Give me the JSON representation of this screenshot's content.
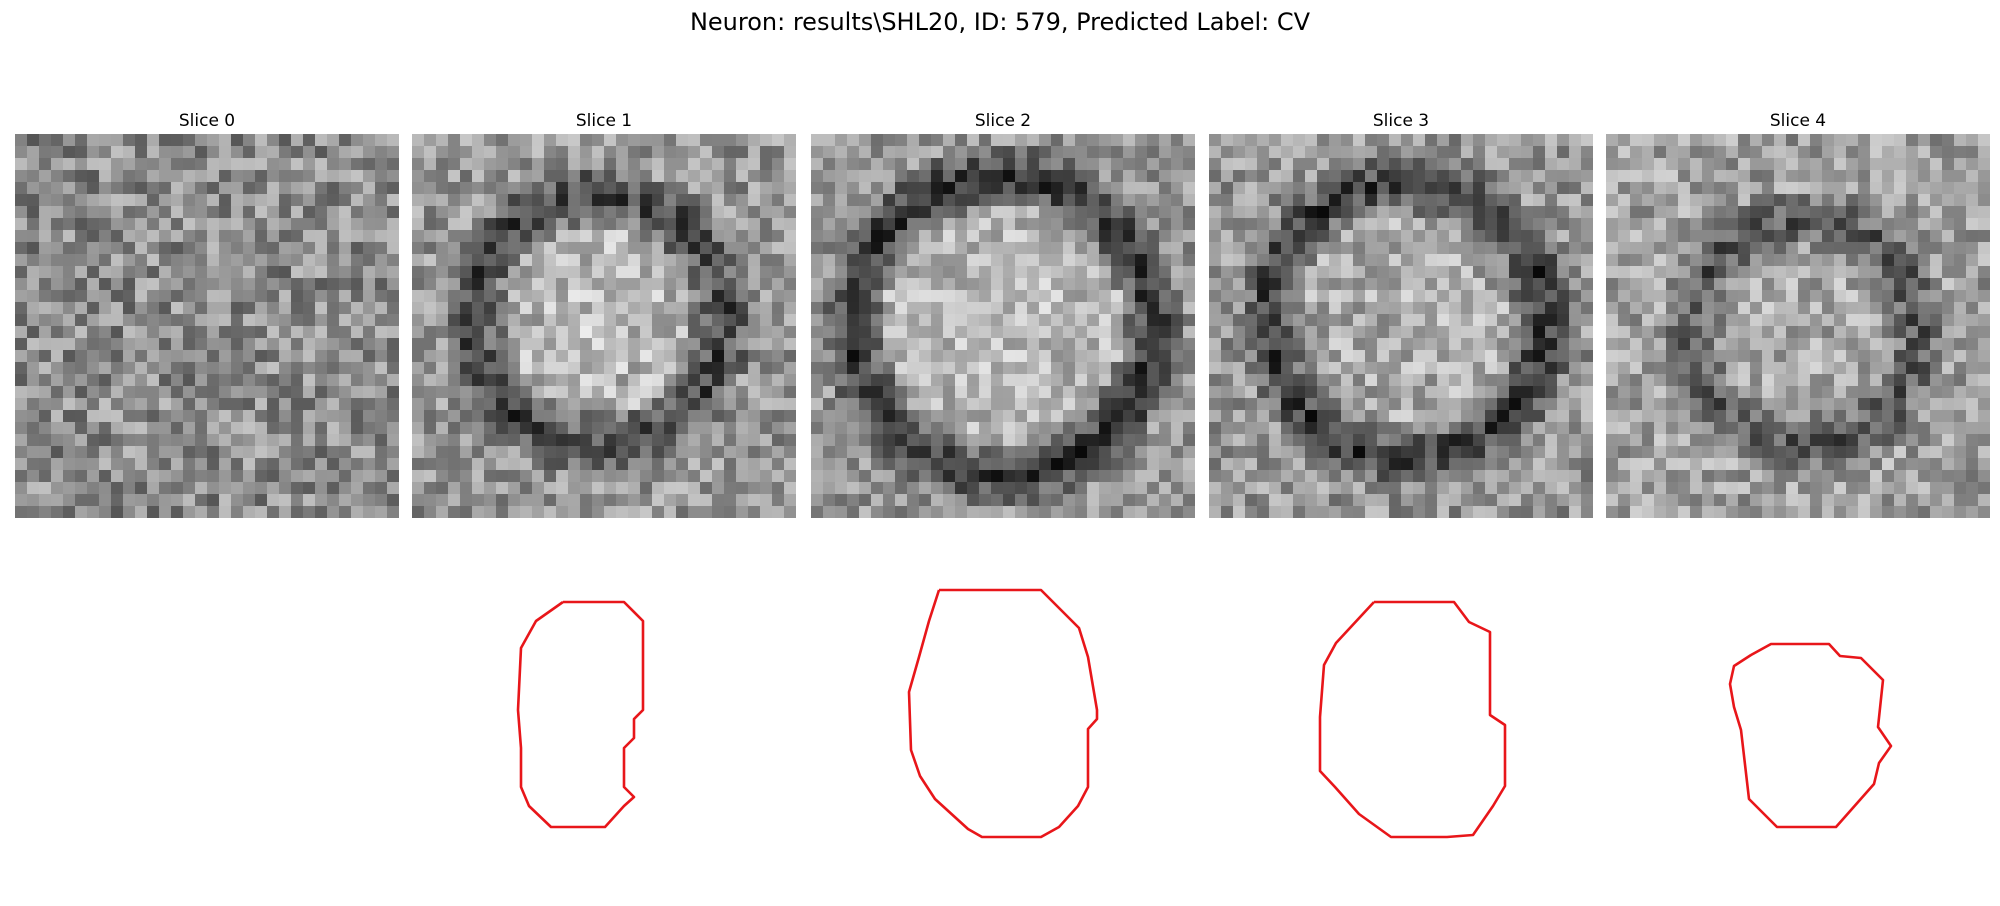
{
  "figure": {
    "title": "Neuron: results\\SHL20, ID: 579, Predicted Label: CV"
  },
  "panels": [
    {
      "title": "Slice 0",
      "has_contour": false
    },
    {
      "title": "Slice 1",
      "has_contour": true
    },
    {
      "title": "Slice 2",
      "has_contour": true
    },
    {
      "title": "Slice 3",
      "has_contour": true
    },
    {
      "title": "Slice 4",
      "has_contour": true
    }
  ],
  "colors": {
    "contour": "#e8161a",
    "background": "#ffffff"
  }
}
